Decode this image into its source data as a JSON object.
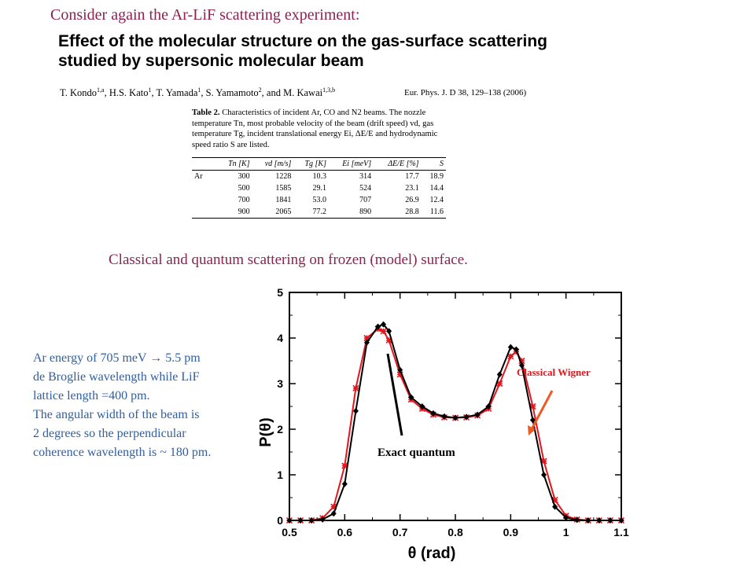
{
  "intro_text": "Consider again the Ar-LiF scattering experiment:",
  "paper": {
    "title_line1": "Effect of the molecular structure on the gas-surface scattering",
    "title_line2": "studied by supersonic molecular beam",
    "authors": [
      {
        "name": "T. Kondo",
        "sup": "1,a"
      },
      {
        "name": "H.S. Kato",
        "sup": "1"
      },
      {
        "name": "T. Yamada",
        "sup": "1"
      },
      {
        "name": "S. Yamamoto",
        "sup": "2"
      },
      {
        "name": "M. Kawai",
        "sup": "1,3,b"
      }
    ],
    "author_sep": ", ",
    "author_and": ", and ",
    "citation": "Eur. Phys. J. D 38, 129–138 (2006)"
  },
  "table": {
    "caption_label": "Table 2.",
    "caption_text": "Characteristics of incident Ar, CO and N2 beams. The nozzle temperature Tn, most probable velocity of the beam (drift speed) vd, gas temperature Tg, incident translational energy Ei, ΔE/E and hydrodynamic speed ratio S are listed.",
    "headers": [
      "",
      "Tn [K]",
      "vd [m/s]",
      "Tg [K]",
      "Ei [meV]",
      "ΔE/E [%]",
      "S"
    ],
    "rows": [
      [
        "Ar",
        "300",
        "1228",
        "10.3",
        "314",
        "17.7",
        "18.9"
      ],
      [
        "",
        "500",
        "1585",
        "29.1",
        "524",
        "23.1",
        "14.4"
      ],
      [
        "",
        "700",
        "1841",
        "53.0",
        "707",
        "26.9",
        "12.4"
      ],
      [
        "",
        "900",
        "2065",
        "77.2",
        "890",
        "28.8",
        "11.6"
      ]
    ]
  },
  "subheading": "Classical and quantum scattering on frozen (model) surface.",
  "side_note": [
    "Ar energy of 705 meV → 5.5 pm",
    "de Broglie wavelength while LiF",
    "lattice length =400 pm.",
    "The angular width of the beam is",
    "2 degrees so the perpendicular",
    "coherence wavelength is ~ 180 pm."
  ],
  "colors": {
    "heading": "#8b2252",
    "note": "#2e5fa3",
    "wigner": "#e8141c",
    "quantum": "#000000",
    "arrow": "#ee5a24"
  },
  "chart_data": {
    "type": "line",
    "xlabel": "θ (rad)",
    "ylabel": "P(θ)",
    "xlim": [
      0.5,
      1.1
    ],
    "ylim": [
      0,
      5
    ],
    "xticks": [
      "0.5",
      "0.6",
      "0.7",
      "0.8",
      "0.9",
      "1",
      "1.1"
    ],
    "yticks": [
      "0",
      "1",
      "2",
      "3",
      "4",
      "5"
    ],
    "series": [
      {
        "name": "Exact quantum",
        "color": "#000000",
        "marker": "diamond",
        "x": [
          0.5,
          0.52,
          0.54,
          0.56,
          0.58,
          0.6,
          0.62,
          0.64,
          0.66,
          0.67,
          0.68,
          0.7,
          0.72,
          0.74,
          0.76,
          0.78,
          0.8,
          0.82,
          0.84,
          0.86,
          0.88,
          0.9,
          0.91,
          0.92,
          0.94,
          0.96,
          0.98,
          1.0,
          1.02,
          1.04,
          1.06,
          1.08,
          1.1
        ],
        "y": [
          0,
          0,
          0,
          0.02,
          0.15,
          0.8,
          2.4,
          3.9,
          4.25,
          4.3,
          4.15,
          3.3,
          2.7,
          2.5,
          2.35,
          2.28,
          2.25,
          2.27,
          2.32,
          2.5,
          3.2,
          3.8,
          3.75,
          3.4,
          2.2,
          1.0,
          0.3,
          0.06,
          0.01,
          0,
          0,
          0,
          0
        ]
      },
      {
        "name": "Classical Wigner",
        "color": "#e8141c",
        "marker": "star",
        "x": [
          0.5,
          0.52,
          0.54,
          0.56,
          0.58,
          0.6,
          0.62,
          0.64,
          0.66,
          0.67,
          0.68,
          0.7,
          0.72,
          0.74,
          0.76,
          0.78,
          0.8,
          0.82,
          0.84,
          0.86,
          0.88,
          0.9,
          0.91,
          0.92,
          0.94,
          0.96,
          0.98,
          1.0,
          1.02,
          1.04,
          1.06,
          1.08,
          1.1
        ],
        "y": [
          0,
          0,
          0,
          0.05,
          0.3,
          1.2,
          2.9,
          4.0,
          4.2,
          4.15,
          3.95,
          3.2,
          2.65,
          2.45,
          2.32,
          2.26,
          2.25,
          2.26,
          2.3,
          2.45,
          3.0,
          3.6,
          3.7,
          3.5,
          2.5,
          1.3,
          0.45,
          0.1,
          0.02,
          0,
          0,
          0,
          0
        ]
      }
    ],
    "annotations": [
      {
        "text": "Exact quantum",
        "color": "#000000"
      },
      {
        "text": "Classical Wigner",
        "color": "#e8141c"
      }
    ]
  }
}
